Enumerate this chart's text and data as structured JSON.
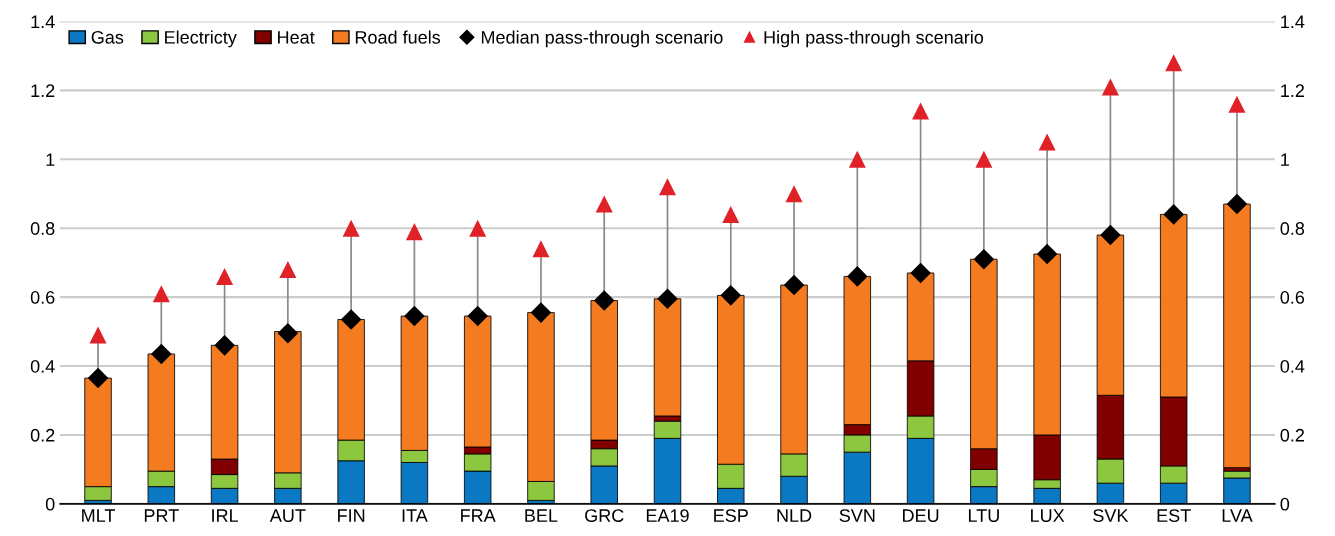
{
  "chart_data": {
    "type": "bar",
    "stacked": true,
    "categories": [
      "MLT",
      "PRT",
      "IRL",
      "AUT",
      "FIN",
      "ITA",
      "FRA",
      "BEL",
      "GRC",
      "EA19",
      "ESP",
      "NLD",
      "SVN",
      "DEU",
      "LTU",
      "LUX",
      "SVK",
      "EST",
      "LVA"
    ],
    "series": [
      {
        "name": "Gas",
        "color": "#0a78c2",
        "values": [
          0.01,
          0.05,
          0.045,
          0.045,
          0.125,
          0.12,
          0.095,
          0.01,
          0.11,
          0.19,
          0.045,
          0.08,
          0.15,
          0.19,
          0.05,
          0.045,
          0.06,
          0.06,
          0.075
        ]
      },
      {
        "name": "Electricty",
        "color": "#8dc63f",
        "values": [
          0.04,
          0.045,
          0.04,
          0.045,
          0.06,
          0.035,
          0.05,
          0.055,
          0.05,
          0.05,
          0.07,
          0.065,
          0.05,
          0.065,
          0.05,
          0.025,
          0.07,
          0.05,
          0.02
        ]
      },
      {
        "name": "Heat",
        "color": "#800000",
        "values": [
          null,
          null,
          0.045,
          null,
          null,
          null,
          0.02,
          null,
          0.025,
          0.015,
          null,
          null,
          0.03,
          0.16,
          0.06,
          0.13,
          0.185,
          0.2,
          0.01
        ]
      },
      {
        "name": "Road fuels",
        "color": "#f47b20",
        "values": [
          0.315,
          0.34,
          0.33,
          0.41,
          0.35,
          0.39,
          0.38,
          0.49,
          0.405,
          0.34,
          0.49,
          0.49,
          0.43,
          0.255,
          0.55,
          0.525,
          0.465,
          0.53,
          0.765
        ]
      },
      {
        "name": "Median pass-through scenario",
        "type": "scatter",
        "marker": "diamond",
        "color": "#000000",
        "x": [
          "MLT",
          "PRT",
          "IRL",
          "AUT",
          "FIN",
          "ITA",
          "FRA",
          "BEL",
          "GRC",
          "EA19",
          "ESP",
          "NLD",
          "SVN",
          "DEU",
          "LTU",
          "LUX",
          "SVK",
          "EST",
          "LVA"
        ],
        "values": [
          0.365,
          0.435,
          0.46,
          0.495,
          0.535,
          0.545,
          0.545,
          0.555,
          0.59,
          0.595,
          0.605,
          0.635,
          0.66,
          0.67,
          0.71,
          0.725,
          0.78,
          0.84,
          0.87
        ]
      },
      {
        "name": "High pass-through scenario",
        "type": "scatter",
        "marker": "triangle",
        "color": "#e02128",
        "x": [
          "MLT",
          "PRT",
          "IRL",
          "AUT",
          "FIN",
          "ITA",
          "FRA",
          "BEL",
          "GRC",
          "EA19",
          "ESP",
          "NLD",
          "SVN",
          "DEU",
          "LTU",
          "LUX",
          "SVK",
          "EST",
          "LVA"
        ],
        "values": [
          0.49,
          0.61,
          0.66,
          0.68,
          0.8,
          0.79,
          0.8,
          0.74,
          0.87,
          0.92,
          0.84,
          0.9,
          1.0,
          1.14,
          1.0,
          1.05,
          1.21,
          1.28,
          1.16
        ]
      }
    ],
    "ylim": [
      0,
      1.4
    ],
    "yticks": [
      0,
      0.2,
      0.4,
      0.6,
      0.8,
      1,
      1.2,
      1.4
    ],
    "y2lim": [
      0,
      1.4
    ],
    "y2ticks": [
      0,
      0.2,
      0.4,
      0.6,
      0.8,
      1,
      1.2,
      1.4
    ],
    "grid": "y",
    "legend": "top left"
  }
}
